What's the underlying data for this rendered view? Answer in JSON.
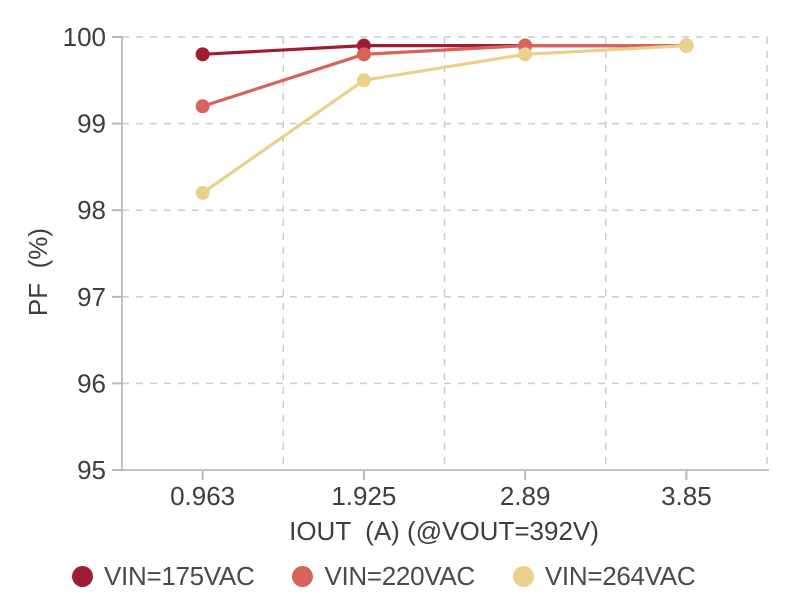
{
  "chart_data": {
    "type": "line",
    "title": "",
    "xlabel": "IOUT  (A) (@VOUT=392V)",
    "ylabel": "PF  (%)",
    "categories": [
      "0.963",
      "1.925",
      "2.89",
      "3.85"
    ],
    "x_values": [
      0.963,
      1.925,
      2.89,
      3.85
    ],
    "ylim": [
      95,
      100
    ],
    "yticks": [
      95,
      96,
      97,
      98,
      99,
      100
    ],
    "grid": "dashed",
    "legend_position": "bottom",
    "series": [
      {
        "name": "VIN=175VAC",
        "color": "#9F1D33",
        "values": [
          99.8,
          99.9,
          99.9,
          99.9
        ]
      },
      {
        "name": "VIN=220VAC",
        "color": "#D7635D",
        "values": [
          99.2,
          99.8,
          99.9,
          99.9
        ]
      },
      {
        "name": "VIN=264VAC",
        "color": "#E9D18C",
        "values": [
          98.2,
          99.5,
          99.8,
          99.9
        ]
      }
    ],
    "colors": {
      "background": "#FFFFFF",
      "grid": "#CCCCCC",
      "axis": "#C1C1C1",
      "tick": "#B8B8B8",
      "text": "#3E3E3E",
      "legend_text": "#4A4A4A"
    }
  }
}
